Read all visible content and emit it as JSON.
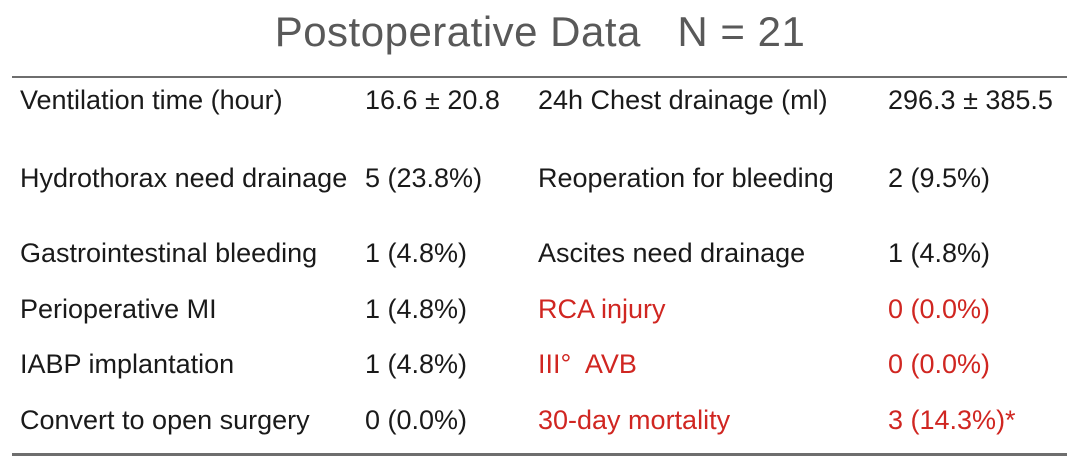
{
  "title": "Postoperative Data   N = 21",
  "colors": {
    "text_black": "#1a1a1a",
    "accent_red": "#d02621",
    "title_gray": "#595959",
    "rule_gray": "#6e6e6e"
  },
  "table": {
    "rows": [
      {
        "left_label": "Ventilation time (hour)",
        "left_value": "16.6 ± 20.8",
        "right_label": "24h Chest drainage (ml)",
        "right_value": "296.3 ± 385.5"
      },
      {
        "left_label": "Hydrothorax need drainage",
        "left_value": "5 (23.8%)",
        "right_label": "Reoperation for bleeding",
        "right_value": "2 (9.5%)"
      },
      {
        "left_label": "Gastrointestinal bleeding",
        "left_value": "1 (4.8%)",
        "right_label": "Ascites need drainage",
        "right_value": "1 (4.8%)"
      },
      {
        "left_label": "Perioperative MI",
        "left_value": "1 (4.8%)",
        "right_label": "RCA injury",
        "right_value": "0 (0.0%)"
      },
      {
        "left_label": "IABP implantation",
        "left_value": "1 (4.8%)",
        "right_label": "III°  AVB",
        "right_value": "0 (0.0%)"
      },
      {
        "left_label": "Convert to open surgery",
        "left_value": "0 (0.0%)",
        "right_label": "30-day mortality",
        "right_value": "3 (14.3%)*"
      }
    ]
  }
}
